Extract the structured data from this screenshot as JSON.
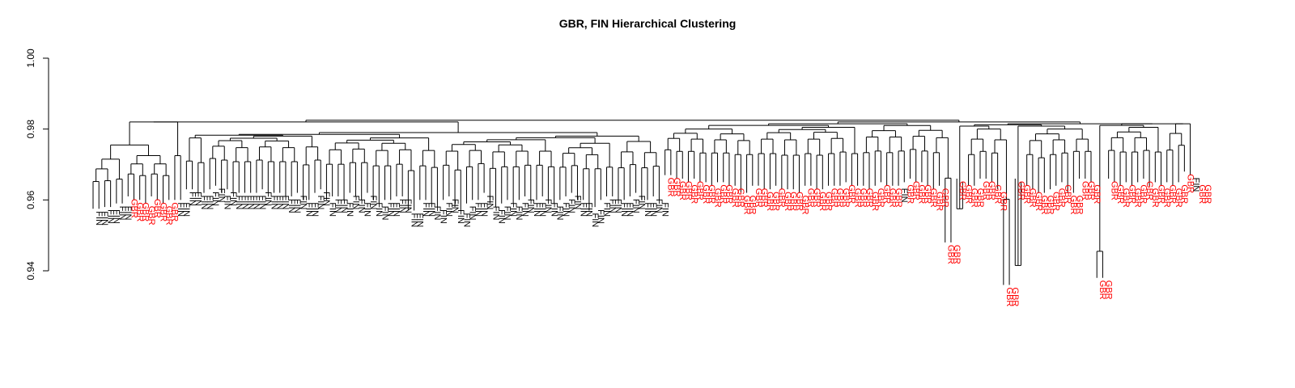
{
  "chart_data": {
    "type": "dendrogram",
    "title": "GBR, FIN Hierarchical Clustering",
    "xlabel": "",
    "ylabel": "",
    "ylim": [
      0.94,
      1.0
    ],
    "yticks": [
      0.94,
      0.96,
      0.98,
      1.0
    ],
    "ytick_labels": [
      "0.94",
      "0.96",
      "0.98",
      "1.00"
    ],
    "grid": false,
    "colors": {
      "FIN": "#000000",
      "GBR": "#ff0000"
    },
    "series": [
      {
        "name": "FIN",
        "color": "#000000"
      },
      {
        "name": "GBR",
        "color": "#ff0000"
      }
    ],
    "leaves": [
      {
        "label": "FIN",
        "h": 0.9575
      },
      {
        "label": "FIN",
        "h": 0.9575
      },
      {
        "label": "FIN",
        "h": 0.958
      },
      {
        "label": "FIN",
        "h": 0.958
      },
      {
        "label": "FIN",
        "h": 0.959
      },
      {
        "label": "FIN",
        "h": 0.959
      },
      {
        "label": "GBR",
        "h": 0.961
      },
      {
        "label": "GBR",
        "h": 0.96
      },
      {
        "label": "GBR",
        "h": 0.96
      },
      {
        "label": "GBR",
        "h": 0.959
      },
      {
        "label": "GBR",
        "h": 0.961
      },
      {
        "label": "GBR",
        "h": 0.96
      },
      {
        "label": "GBR",
        "h": 0.959
      },
      {
        "label": "GBR",
        "h": 0.96
      },
      {
        "label": "FIN",
        "h": 0.96
      },
      {
        "label": "FIN",
        "h": 0.96
      },
      {
        "label": "FIN",
        "h": 0.963
      },
      {
        "label": "FIN",
        "h": 0.963
      },
      {
        "label": "FIN",
        "h": 0.962
      },
      {
        "label": "FIN",
        "h": 0.962
      },
      {
        "label": "FIN",
        "h": 0.963
      },
      {
        "label": "FIN",
        "h": 0.964
      },
      {
        "label": "FIN",
        "h": 0.962
      },
      {
        "label": "FIN",
        "h": 0.963
      },
      {
        "label": "FIN",
        "h": 0.962
      },
      {
        "label": "FIN",
        "h": 0.962
      },
      {
        "label": "FIN",
        "h": 0.962
      },
      {
        "label": "FIN",
        "h": 0.962
      },
      {
        "label": "FIN",
        "h": 0.962
      },
      {
        "label": "FIN",
        "h": 0.963
      },
      {
        "label": "FIN",
        "h": 0.962
      },
      {
        "label": "FIN",
        "h": 0.962
      },
      {
        "label": "FIN",
        "h": 0.962
      },
      {
        "label": "FIN",
        "h": 0.961
      },
      {
        "label": "FIN",
        "h": 0.961
      },
      {
        "label": "FIN",
        "h": 0.962
      },
      {
        "label": "FIN",
        "h": 0.96
      },
      {
        "label": "FIN",
        "h": 0.96
      },
      {
        "label": "FIN",
        "h": 0.962
      },
      {
        "label": "FIN",
        "h": 0.963
      },
      {
        "label": "FIN",
        "h": 0.96
      },
      {
        "label": "FIN",
        "h": 0.961
      },
      {
        "label": "FIN",
        "h": 0.961
      },
      {
        "label": "FIN",
        "h": 0.96
      },
      {
        "label": "FIN",
        "h": 0.962
      },
      {
        "label": "FIN",
        "h": 0.961
      },
      {
        "label": "FIN",
        "h": 0.96
      },
      {
        "label": "FIN",
        "h": 0.962
      },
      {
        "label": "FIN",
        "h": 0.96
      },
      {
        "label": "FIN",
        "h": 0.959
      },
      {
        "label": "FIN",
        "h": 0.96
      },
      {
        "label": "FIN",
        "h": 0.96
      },
      {
        "label": "FIN",
        "h": 0.961
      },
      {
        "label": "FIN",
        "h": 0.961
      },
      {
        "label": "FIN",
        "h": 0.957
      },
      {
        "label": "FIN",
        "h": 0.957
      },
      {
        "label": "FIN",
        "h": 0.96
      },
      {
        "label": "FIN",
        "h": 0.96
      },
      {
        "label": "FIN",
        "h": 0.959
      },
      {
        "label": "FIN",
        "h": 0.958
      },
      {
        "label": "FIN",
        "h": 0.96
      },
      {
        "label": "FIN",
        "h": 0.961
      },
      {
        "label": "FIN",
        "h": 0.958
      },
      {
        "label": "FIN",
        "h": 0.957
      },
      {
        "label": "FIN",
        "h": 0.959
      },
      {
        "label": "FIN",
        "h": 0.96
      },
      {
        "label": "FIN",
        "h": 0.96
      },
      {
        "label": "FIN",
        "h": 0.962
      },
      {
        "label": "FIN",
        "h": 0.959
      },
      {
        "label": "FIN",
        "h": 0.958
      },
      {
        "label": "FIN",
        "h": 0.959
      },
      {
        "label": "FIN",
        "h": 0.96
      },
      {
        "label": "FIN",
        "h": 0.959
      },
      {
        "label": "FIN",
        "h": 0.96
      },
      {
        "label": "FIN",
        "h": 0.961
      },
      {
        "label": "FIN",
        "h": 0.96
      },
      {
        "label": "FIN",
        "h": 0.96
      },
      {
        "label": "FIN",
        "h": 0.961
      },
      {
        "label": "FIN",
        "h": 0.96
      },
      {
        "label": "FIN",
        "h": 0.959
      },
      {
        "label": "FIN",
        "h": 0.96
      },
      {
        "label": "FIN",
        "h": 0.961
      },
      {
        "label": "FIN",
        "h": 0.962
      },
      {
        "label": "FIN",
        "h": 0.96
      },
      {
        "label": "FIN",
        "h": 0.96
      },
      {
        "label": "FIN",
        "h": 0.957
      },
      {
        "label": "FIN",
        "h": 0.958
      },
      {
        "label": "FIN",
        "h": 0.96
      },
      {
        "label": "FIN",
        "h": 0.961
      },
      {
        "label": "FIN",
        "h": 0.961
      },
      {
        "label": "FIN",
        "h": 0.96
      },
      {
        "label": "FIN",
        "h": 0.96
      },
      {
        "label": "FIN",
        "h": 0.961
      },
      {
        "label": "FIN",
        "h": 0.962
      },
      {
        "label": "FIN",
        "h": 0.96
      },
      {
        "label": "FIN",
        "h": 0.96
      },
      {
        "label": "FIN",
        "h": 0.961
      },
      {
        "label": "FIN",
        "h": 0.96
      },
      {
        "label": "GBR",
        "h": 0.967
      },
      {
        "label": "GBR",
        "h": 0.967
      },
      {
        "label": "GBR",
        "h": 0.966
      },
      {
        "label": "GBR",
        "h": 0.966
      },
      {
        "label": "GBR",
        "h": 0.965
      },
      {
        "label": "GBR",
        "h": 0.966
      },
      {
        "label": "GBR",
        "h": 0.965
      },
      {
        "label": "GBR",
        "h": 0.965
      },
      {
        "label": "GBR",
        "h": 0.964
      },
      {
        "label": "GBR",
        "h": 0.965
      },
      {
        "label": "GBR",
        "h": 0.965
      },
      {
        "label": "GBR",
        "h": 0.964
      },
      {
        "label": "GBR",
        "h": 0.964
      },
      {
        "label": "GBR",
        "h": 0.962
      },
      {
        "label": "GBR",
        "h": 0.962
      },
      {
        "label": "GBR",
        "h": 0.964
      },
      {
        "label": "GBR",
        "h": 0.964
      },
      {
        "label": "GBR",
        "h": 0.963
      },
      {
        "label": "GBR",
        "h": 0.963
      },
      {
        "label": "GBR",
        "h": 0.964
      },
      {
        "label": "GBR",
        "h": 0.963
      },
      {
        "label": "GBR",
        "h": 0.963
      },
      {
        "label": "GBR",
        "h": 0.963
      },
      {
        "label": "GBR",
        "h": 0.962
      },
      {
        "label": "GBR",
        "h": 0.964
      },
      {
        "label": "GBR",
        "h": 0.964
      },
      {
        "label": "GBR",
        "h": 0.963
      },
      {
        "label": "GBR",
        "h": 0.963
      },
      {
        "label": "GBR",
        "h": 0.964
      },
      {
        "label": "GBR",
        "h": 0.964
      },
      {
        "label": "GBR",
        "h": 0.964
      },
      {
        "label": "GBR",
        "h": 0.965
      },
      {
        "label": "GBR",
        "h": 0.964
      },
      {
        "label": "GBR",
        "h": 0.964
      },
      {
        "label": "GBR",
        "h": 0.964
      },
      {
        "label": "GBR",
        "h": 0.963
      },
      {
        "label": "GBR",
        "h": 0.964
      },
      {
        "label": "GBR",
        "h": 0.965
      },
      {
        "label": "GBR",
        "h": 0.964
      },
      {
        "label": "GBR",
        "h": 0.964
      },
      {
        "label": "FIN",
        "h": 0.964
      },
      {
        "label": "GBR",
        "h": 0.965
      },
      {
        "label": "GBR",
        "h": 0.966
      },
      {
        "label": "GBR",
        "h": 0.965
      },
      {
        "label": "GBR",
        "h": 0.965
      },
      {
        "label": "GBR",
        "h": 0.964
      },
      {
        "label": "GBR",
        "h": 0.963
      },
      {
        "label": "GBR",
        "h": 0.964
      },
      {
        "label": "GBR",
        "h": 0.948
      },
      {
        "label": "GBR",
        "h": 0.948
      },
      {
        "label": "GBR",
        "h": 0.966
      },
      {
        "label": "GBR",
        "h": 0.965
      },
      {
        "label": "GBR",
        "h": 0.964
      },
      {
        "label": "GBR",
        "h": 0.964
      },
      {
        "label": "GBR",
        "h": 0.966
      },
      {
        "label": "GBR",
        "h": 0.966
      },
      {
        "label": "GBR",
        "h": 0.965
      },
      {
        "label": "GBR",
        "h": 0.963
      },
      {
        "label": "GBR",
        "h": 0.936
      },
      {
        "label": "GBR",
        "h": 0.936
      },
      {
        "label": "GBR",
        "h": 0.966
      },
      {
        "label": "GBR",
        "h": 0.965
      },
      {
        "label": "GBR",
        "h": 0.964
      },
      {
        "label": "GBR",
        "h": 0.963
      },
      {
        "label": "GBR",
        "h": 0.962
      },
      {
        "label": "GBR",
        "h": 0.962
      },
      {
        "label": "GBR",
        "h": 0.963
      },
      {
        "label": "GBR",
        "h": 0.964
      },
      {
        "label": "GBR",
        "h": 0.965
      },
      {
        "label": "GBR",
        "h": 0.962
      },
      {
        "label": "GBR",
        "h": 0.962
      },
      {
        "label": "GBR",
        "h": 0.966
      },
      {
        "label": "GBR",
        "h": 0.966
      },
      {
        "label": "GBR",
        "h": 0.965
      },
      {
        "label": "GBR",
        "h": 0.938
      },
      {
        "label": "GBR",
        "h": 0.938
      },
      {
        "label": "GBR",
        "h": 0.966
      },
      {
        "label": "GBR",
        "h": 0.965
      },
      {
        "label": "GBR",
        "h": 0.964
      },
      {
        "label": "GBR",
        "h": 0.965
      },
      {
        "label": "GBR",
        "h": 0.964
      },
      {
        "label": "GBR",
        "h": 0.965
      },
      {
        "label": "GBR",
        "h": 0.966
      },
      {
        "label": "GBR",
        "h": 0.964
      },
      {
        "label": "GBR",
        "h": 0.965
      },
      {
        "label": "GBR",
        "h": 0.964
      },
      {
        "label": "GBR",
        "h": 0.965
      },
      {
        "label": "GBR",
        "h": 0.964
      },
      {
        "label": "GBR",
        "h": 0.965
      },
      {
        "label": "GBR",
        "h": 0.968
      },
      {
        "label": "FIN",
        "h": 0.967
      },
      {
        "label": "GBR",
        "h": 0.965
      },
      {
        "label": "GBR",
        "h": 0.965
      }
    ],
    "merges": [
      {
        "g": [
          0,
          5
        ],
        "h": 0.9715
      },
      {
        "g": [
          6,
          13
        ],
        "h": 0.9725
      },
      {
        "g": [
          0,
          13
        ],
        "h": 0.9755
      },
      {
        "g": [
          14,
          15
        ],
        "h": 0.9725
      },
      {
        "g": [
          0,
          15
        ],
        "h": 0.982
      },
      {
        "g": [
          16,
          19
        ],
        "h": 0.9775
      },
      {
        "g": [
          20,
          39
        ],
        "h": 0.978
      },
      {
        "g": [
          40,
          59
        ],
        "h": 0.9775
      },
      {
        "g": [
          60,
          79
        ],
        "h": 0.977
      },
      {
        "g": [
          80,
          89
        ],
        "h": 0.976
      },
      {
        "g": [
          90,
          97
        ],
        "h": 0.9765
      },
      {
        "g": [
          16,
          59
        ],
        "h": 0.9785
      },
      {
        "g": [
          60,
          97
        ],
        "h": 0.978
      },
      {
        "g": [
          16,
          97
        ],
        "h": 0.979
      },
      {
        "g": [
          0,
          97
        ],
        "h": 0.982
      },
      {
        "g": [
          98,
          113
        ],
        "h": 0.98
      },
      {
        "g": [
          114,
          131
        ],
        "h": 0.9805
      },
      {
        "g": [
          132,
          147
        ],
        "h": 0.981
      },
      {
        "g": [
          98,
          147
        ],
        "h": 0.9815
      },
      {
        "g": [
          148,
          149
        ],
        "h": 0.9575
      },
      {
        "g": [
          150,
          157
        ],
        "h": 0.98
      },
      {
        "g": [
          158,
          159
        ],
        "h": 0.9415
      },
      {
        "g": [
          160,
          171
        ],
        "h": 0.98
      },
      {
        "g": [
          172,
          173
        ],
        "h": 0.9455
      },
      {
        "g": [
          174,
          183
        ],
        "h": 0.9805
      },
      {
        "g": [
          184,
          188
        ],
        "h": 0.9815
      },
      {
        "g": [
          148,
          188
        ],
        "h": 0.9815
      },
      {
        "g": [
          98,
          188
        ],
        "h": 0.982
      },
      {
        "g": [
          0,
          188
        ],
        "h": 0.9825
      }
    ]
  }
}
